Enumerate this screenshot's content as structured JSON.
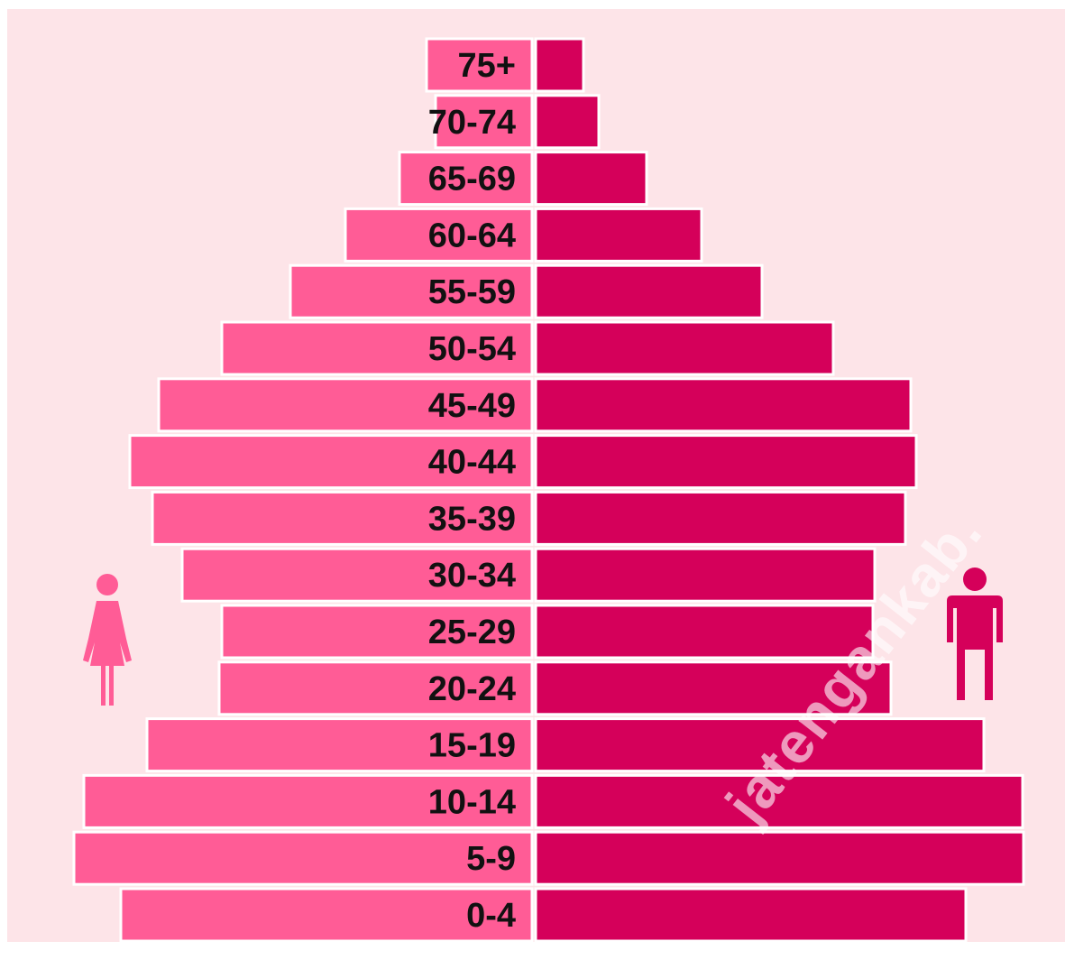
{
  "chart_data": {
    "type": "bar",
    "orientation": "horizontal",
    "style": "population-pyramid",
    "categories": [
      "75+",
      "70-74",
      "65-69",
      "60-64",
      "55-59",
      "50-54",
      "45-49",
      "40-44",
      "35-39",
      "30-34",
      "25-29",
      "20-24",
      "15-19",
      "10-14",
      "5-9",
      "0-4"
    ],
    "series": [
      {
        "side": "left",
        "icon": "female-person-icon",
        "color": "#ff5c96",
        "values": [
          117,
          107,
          147,
          207,
          268,
          344,
          414,
          446,
          421,
          388,
          344,
          347,
          427,
          497,
          508,
          456
        ]
      },
      {
        "side": "right",
        "icon": "male-person-icon",
        "color": "#d5005a",
        "values": [
          53,
          70,
          123,
          184,
          251,
          330,
          416,
          422,
          410,
          376,
          374,
          394,
          497,
          540,
          541,
          477
        ]
      }
    ],
    "xlim": [
      0,
      560
    ],
    "grid": false,
    "legend": "none"
  },
  "watermark": "jatengankab."
}
